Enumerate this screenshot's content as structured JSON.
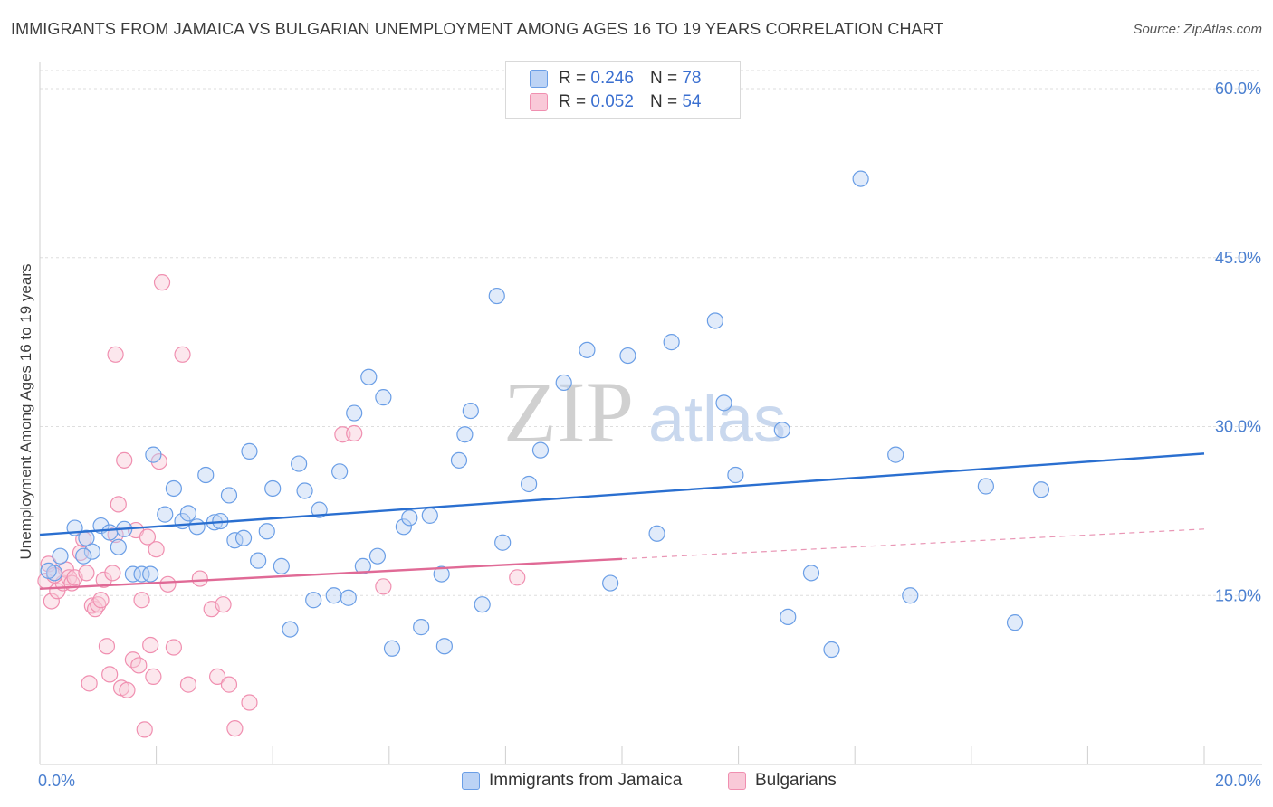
{
  "header": {
    "title": "IMMIGRANTS FROM JAMAICA VS BULGARIAN UNEMPLOYMENT AMONG AGES 16 TO 19 YEARS CORRELATION CHART",
    "source": "Source: ZipAtlas.com"
  },
  "watermark": {
    "zip": "ZIP",
    "atlas": "atlas"
  },
  "legend_top": {
    "rows": [
      {
        "r_label": "R =",
        "r_value": "0.246",
        "n_label": "N =",
        "n_value": "78"
      },
      {
        "r_label": "R =",
        "r_value": "0.052",
        "n_label": "N =",
        "n_value": "54"
      }
    ]
  },
  "chart_data": {
    "type": "scatter",
    "title": "IMMIGRANTS FROM JAMAICA VS BULGARIAN UNEMPLOYMENT AMONG AGES 16 TO 19 YEARS CORRELATION CHART",
    "xlabel": "",
    "ylabel": "Unemployment Among Ages 16 to 19 years",
    "xlim": [
      0,
      20
    ],
    "ylim": [
      0,
      62
    ],
    "x_tick_labels": [
      {
        "value": 0,
        "label": "0.0%"
      },
      {
        "value": 20,
        "label": "20.0%"
      }
    ],
    "y_tick_labels": [
      {
        "value": 15,
        "label": "15.0%"
      },
      {
        "value": 30,
        "label": "30.0%"
      },
      {
        "value": 45,
        "label": "45.0%"
      },
      {
        "value": 60,
        "label": "60.0%"
      }
    ],
    "grid": true,
    "legend_position": "bottom",
    "colors": {
      "jamaica": "#6a9ee6",
      "bulgarians": "#f08fb0",
      "jamaica_line": "#2a6fd0",
      "bulgarians_line": "#e06a96"
    },
    "series": [
      {
        "name": "Immigrants from Jamaica",
        "r": 0.246,
        "n": 78,
        "trend": {
          "x": [
            0,
            20
          ],
          "y": [
            20.4,
            27.6
          ],
          "solid_to": 20
        },
        "points": [
          [
            0.25,
            17.0
          ],
          [
            0.35,
            18.5
          ],
          [
            0.6,
            21.0
          ],
          [
            0.8,
            20.1
          ],
          [
            0.9,
            18.9
          ],
          [
            1.05,
            21.2
          ],
          [
            1.2,
            20.6
          ],
          [
            0.75,
            18.5
          ],
          [
            1.35,
            19.3
          ],
          [
            1.45,
            20.9
          ],
          [
            1.6,
            16.9
          ],
          [
            1.75,
            16.9
          ],
          [
            1.9,
            16.9
          ],
          [
            1.95,
            27.5
          ],
          [
            2.15,
            22.2
          ],
          [
            2.3,
            24.5
          ],
          [
            2.45,
            21.6
          ],
          [
            2.55,
            22.3
          ],
          [
            2.7,
            21.1
          ],
          [
            2.85,
            25.7
          ],
          [
            3.0,
            21.5
          ],
          [
            3.1,
            21.6
          ],
          [
            3.25,
            23.9
          ],
          [
            3.35,
            19.9
          ],
          [
            3.5,
            20.1
          ],
          [
            3.6,
            27.8
          ],
          [
            3.75,
            18.1
          ],
          [
            3.9,
            20.7
          ],
          [
            4.0,
            24.5
          ],
          [
            4.15,
            17.6
          ],
          [
            4.3,
            12.0
          ],
          [
            4.45,
            26.7
          ],
          [
            4.55,
            24.3
          ],
          [
            4.7,
            14.6
          ],
          [
            4.8,
            22.6
          ],
          [
            5.05,
            15.0
          ],
          [
            5.15,
            26.0
          ],
          [
            5.3,
            14.8
          ],
          [
            5.4,
            31.2
          ],
          [
            5.55,
            17.6
          ],
          [
            5.65,
            34.4
          ],
          [
            5.8,
            18.5
          ],
          [
            5.9,
            32.6
          ],
          [
            6.05,
            10.3
          ],
          [
            6.25,
            21.1
          ],
          [
            6.35,
            21.9
          ],
          [
            6.55,
            12.2
          ],
          [
            6.7,
            22.1
          ],
          [
            6.9,
            16.9
          ],
          [
            6.95,
            10.5
          ],
          [
            7.2,
            27.0
          ],
          [
            7.3,
            29.3
          ],
          [
            7.4,
            31.4
          ],
          [
            7.6,
            14.2
          ],
          [
            7.85,
            41.6
          ],
          [
            7.95,
            19.7
          ],
          [
            8.4,
            24.9
          ],
          [
            8.6,
            27.9
          ],
          [
            9.0,
            33.9
          ],
          [
            9.4,
            36.8
          ],
          [
            9.8,
            16.1
          ],
          [
            10.1,
            36.3
          ],
          [
            10.6,
            20.5
          ],
          [
            10.85,
            37.5
          ],
          [
            11.6,
            39.4
          ],
          [
            11.75,
            32.1
          ],
          [
            11.95,
            25.7
          ],
          [
            12.75,
            29.7
          ],
          [
            12.85,
            13.1
          ],
          [
            13.25,
            17.0
          ],
          [
            13.6,
            10.2
          ],
          [
            14.1,
            52.0
          ],
          [
            14.7,
            27.5
          ],
          [
            14.95,
            15.0
          ],
          [
            16.25,
            24.7
          ],
          [
            16.75,
            12.6
          ],
          [
            17.2,
            24.4
          ],
          [
            0.15,
            17.2
          ]
        ]
      },
      {
        "name": "Bulgarians",
        "r": 0.052,
        "n": 54,
        "trend": {
          "x": [
            0,
            20
          ],
          "y": [
            15.6,
            20.9
          ],
          "solid_to": 10
        },
        "points": [
          [
            0.1,
            16.3
          ],
          [
            0.15,
            17.8
          ],
          [
            0.2,
            14.5
          ],
          [
            0.3,
            15.4
          ],
          [
            0.4,
            16.1
          ],
          [
            0.45,
            17.3
          ],
          [
            0.5,
            16.6
          ],
          [
            0.55,
            16.1
          ],
          [
            0.6,
            16.6
          ],
          [
            0.7,
            18.8
          ],
          [
            0.75,
            20.0
          ],
          [
            0.8,
            17.0
          ],
          [
            0.85,
            7.2
          ],
          [
            0.9,
            14.1
          ],
          [
            0.95,
            13.8
          ],
          [
            1.0,
            14.2
          ],
          [
            1.05,
            14.6
          ],
          [
            1.1,
            16.4
          ],
          [
            1.15,
            10.5
          ],
          [
            1.2,
            8.0
          ],
          [
            1.25,
            17.0
          ],
          [
            1.3,
            20.4
          ],
          [
            1.35,
            23.1
          ],
          [
            1.4,
            6.8
          ],
          [
            1.45,
            27.0
          ],
          [
            1.5,
            6.6
          ],
          [
            1.6,
            9.3
          ],
          [
            1.65,
            20.8
          ],
          [
            1.7,
            8.8
          ],
          [
            1.75,
            14.6
          ],
          [
            1.8,
            3.1
          ],
          [
            1.85,
            20.2
          ],
          [
            1.9,
            10.6
          ],
          [
            1.95,
            7.8
          ],
          [
            2.0,
            19.1
          ],
          [
            2.05,
            26.9
          ],
          [
            2.1,
            42.8
          ],
          [
            2.2,
            16.0
          ],
          [
            2.3,
            10.4
          ],
          [
            2.45,
            36.4
          ],
          [
            2.55,
            7.1
          ],
          [
            2.75,
            16.5
          ],
          [
            2.95,
            13.8
          ],
          [
            3.05,
            7.8
          ],
          [
            3.15,
            14.2
          ],
          [
            3.25,
            7.1
          ],
          [
            3.35,
            3.2
          ],
          [
            3.6,
            5.5
          ],
          [
            1.3,
            36.4
          ],
          [
            5.2,
            29.3
          ],
          [
            5.4,
            29.4
          ],
          [
            5.9,
            15.8
          ],
          [
            8.2,
            16.6
          ],
          [
            0.25,
            16.8
          ]
        ]
      }
    ]
  },
  "legend_bottom": {
    "items": [
      {
        "label": "Immigrants from Jamaica"
      },
      {
        "label": "Bulgarians"
      }
    ]
  }
}
